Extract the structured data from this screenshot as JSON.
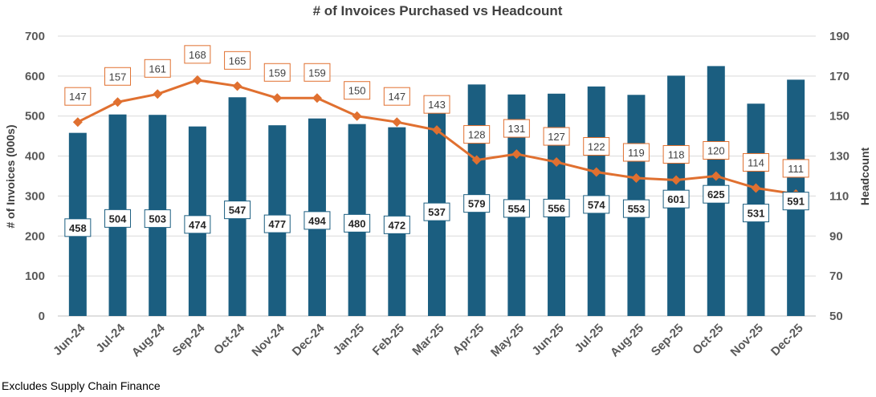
{
  "chart_data": {
    "type": "bar+line",
    "title": "# of Invoices Purchased vs Headcount",
    "categories": [
      "Jun-24",
      "Jul-24",
      "Aug-24",
      "Sep-24",
      "Oct-24",
      "Nov-24",
      "Dec-24",
      "Jan-25",
      "Feb-25",
      "Mar-25",
      "Apr-25",
      "May-25",
      "Jun-25",
      "Jul-25",
      "Aug-25",
      "Sep-25",
      "Oct-25",
      "Nov-25",
      "Dec-25"
    ],
    "series": [
      {
        "name": "# of Invoices (000s)",
        "type": "bar",
        "axis": "left",
        "color": "#1b5e80",
        "values": [
          458,
          504,
          503,
          474,
          547,
          477,
          494,
          480,
          472,
          537,
          579,
          554,
          556,
          574,
          553,
          601,
          625,
          531,
          591
        ]
      },
      {
        "name": "Headcount",
        "type": "line",
        "axis": "right",
        "color": "#e07030",
        "values": [
          147,
          157,
          161,
          168,
          165,
          159,
          159,
          150,
          147,
          143,
          128,
          131,
          127,
          122,
          119,
          118,
          120,
          114,
          111
        ]
      }
    ],
    "ylabel_left": "# of Invoices (000s)",
    "ylabel_right": "Headcount",
    "ylim_left": [
      0,
      700
    ],
    "yticks_left": [
      0,
      100,
      200,
      300,
      400,
      500,
      600,
      700
    ],
    "ylim_right": [
      50,
      190
    ],
    "yticks_right": [
      50,
      70,
      90,
      110,
      130,
      150,
      170,
      190
    ],
    "grid": true
  },
  "footnote": "Excludes Supply Chain Finance"
}
